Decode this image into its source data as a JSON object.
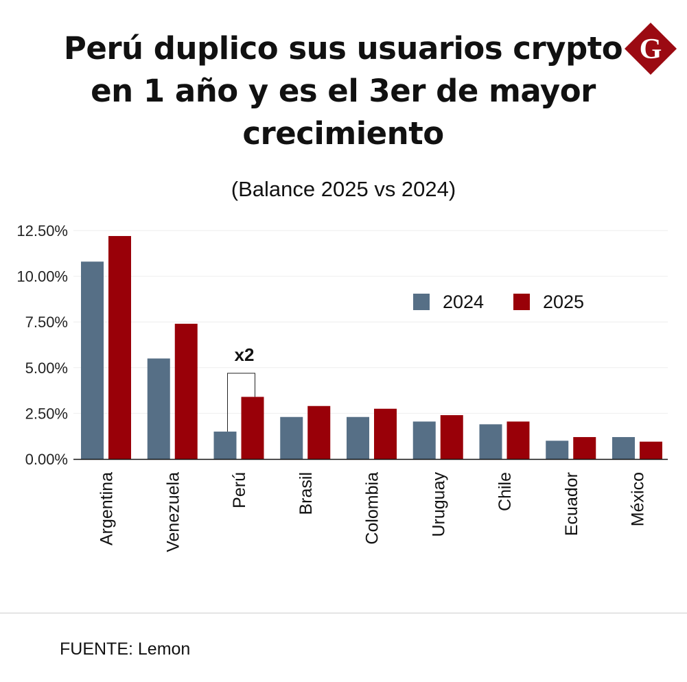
{
  "title": "Perú duplico sus usuarios crypto en 1 año y es el 3er de mayor crecimiento",
  "subtitle": "(Balance 2025 vs 2024)",
  "logo": {
    "text": "G",
    "color": "#9b0a12"
  },
  "source": "FUENTE: Lemon",
  "chart_data": {
    "type": "bar",
    "categories": [
      "Argentina",
      "Venezuela",
      "Perú",
      "Brasil",
      "Colombia",
      "Uruguay",
      "Chile",
      "Ecuador",
      "México"
    ],
    "series": [
      {
        "name": "2024",
        "color": "#566f86",
        "values": [
          10.8,
          5.5,
          1.5,
          2.3,
          2.3,
          2.05,
          1.9,
          1.0,
          1.2
        ]
      },
      {
        "name": "2025",
        "color": "#990008",
        "values": [
          12.2,
          7.4,
          3.4,
          2.9,
          2.75,
          2.4,
          2.05,
          1.2,
          0.95
        ]
      }
    ],
    "yticks": [
      "0.00%",
      "2.50%",
      "5.00%",
      "7.50%",
      "10.00%",
      "12.50%"
    ],
    "ylim": [
      0,
      12.5
    ],
    "grid": true,
    "legend": "top-right",
    "annotation": {
      "text": "x2",
      "category": "Perú"
    }
  }
}
